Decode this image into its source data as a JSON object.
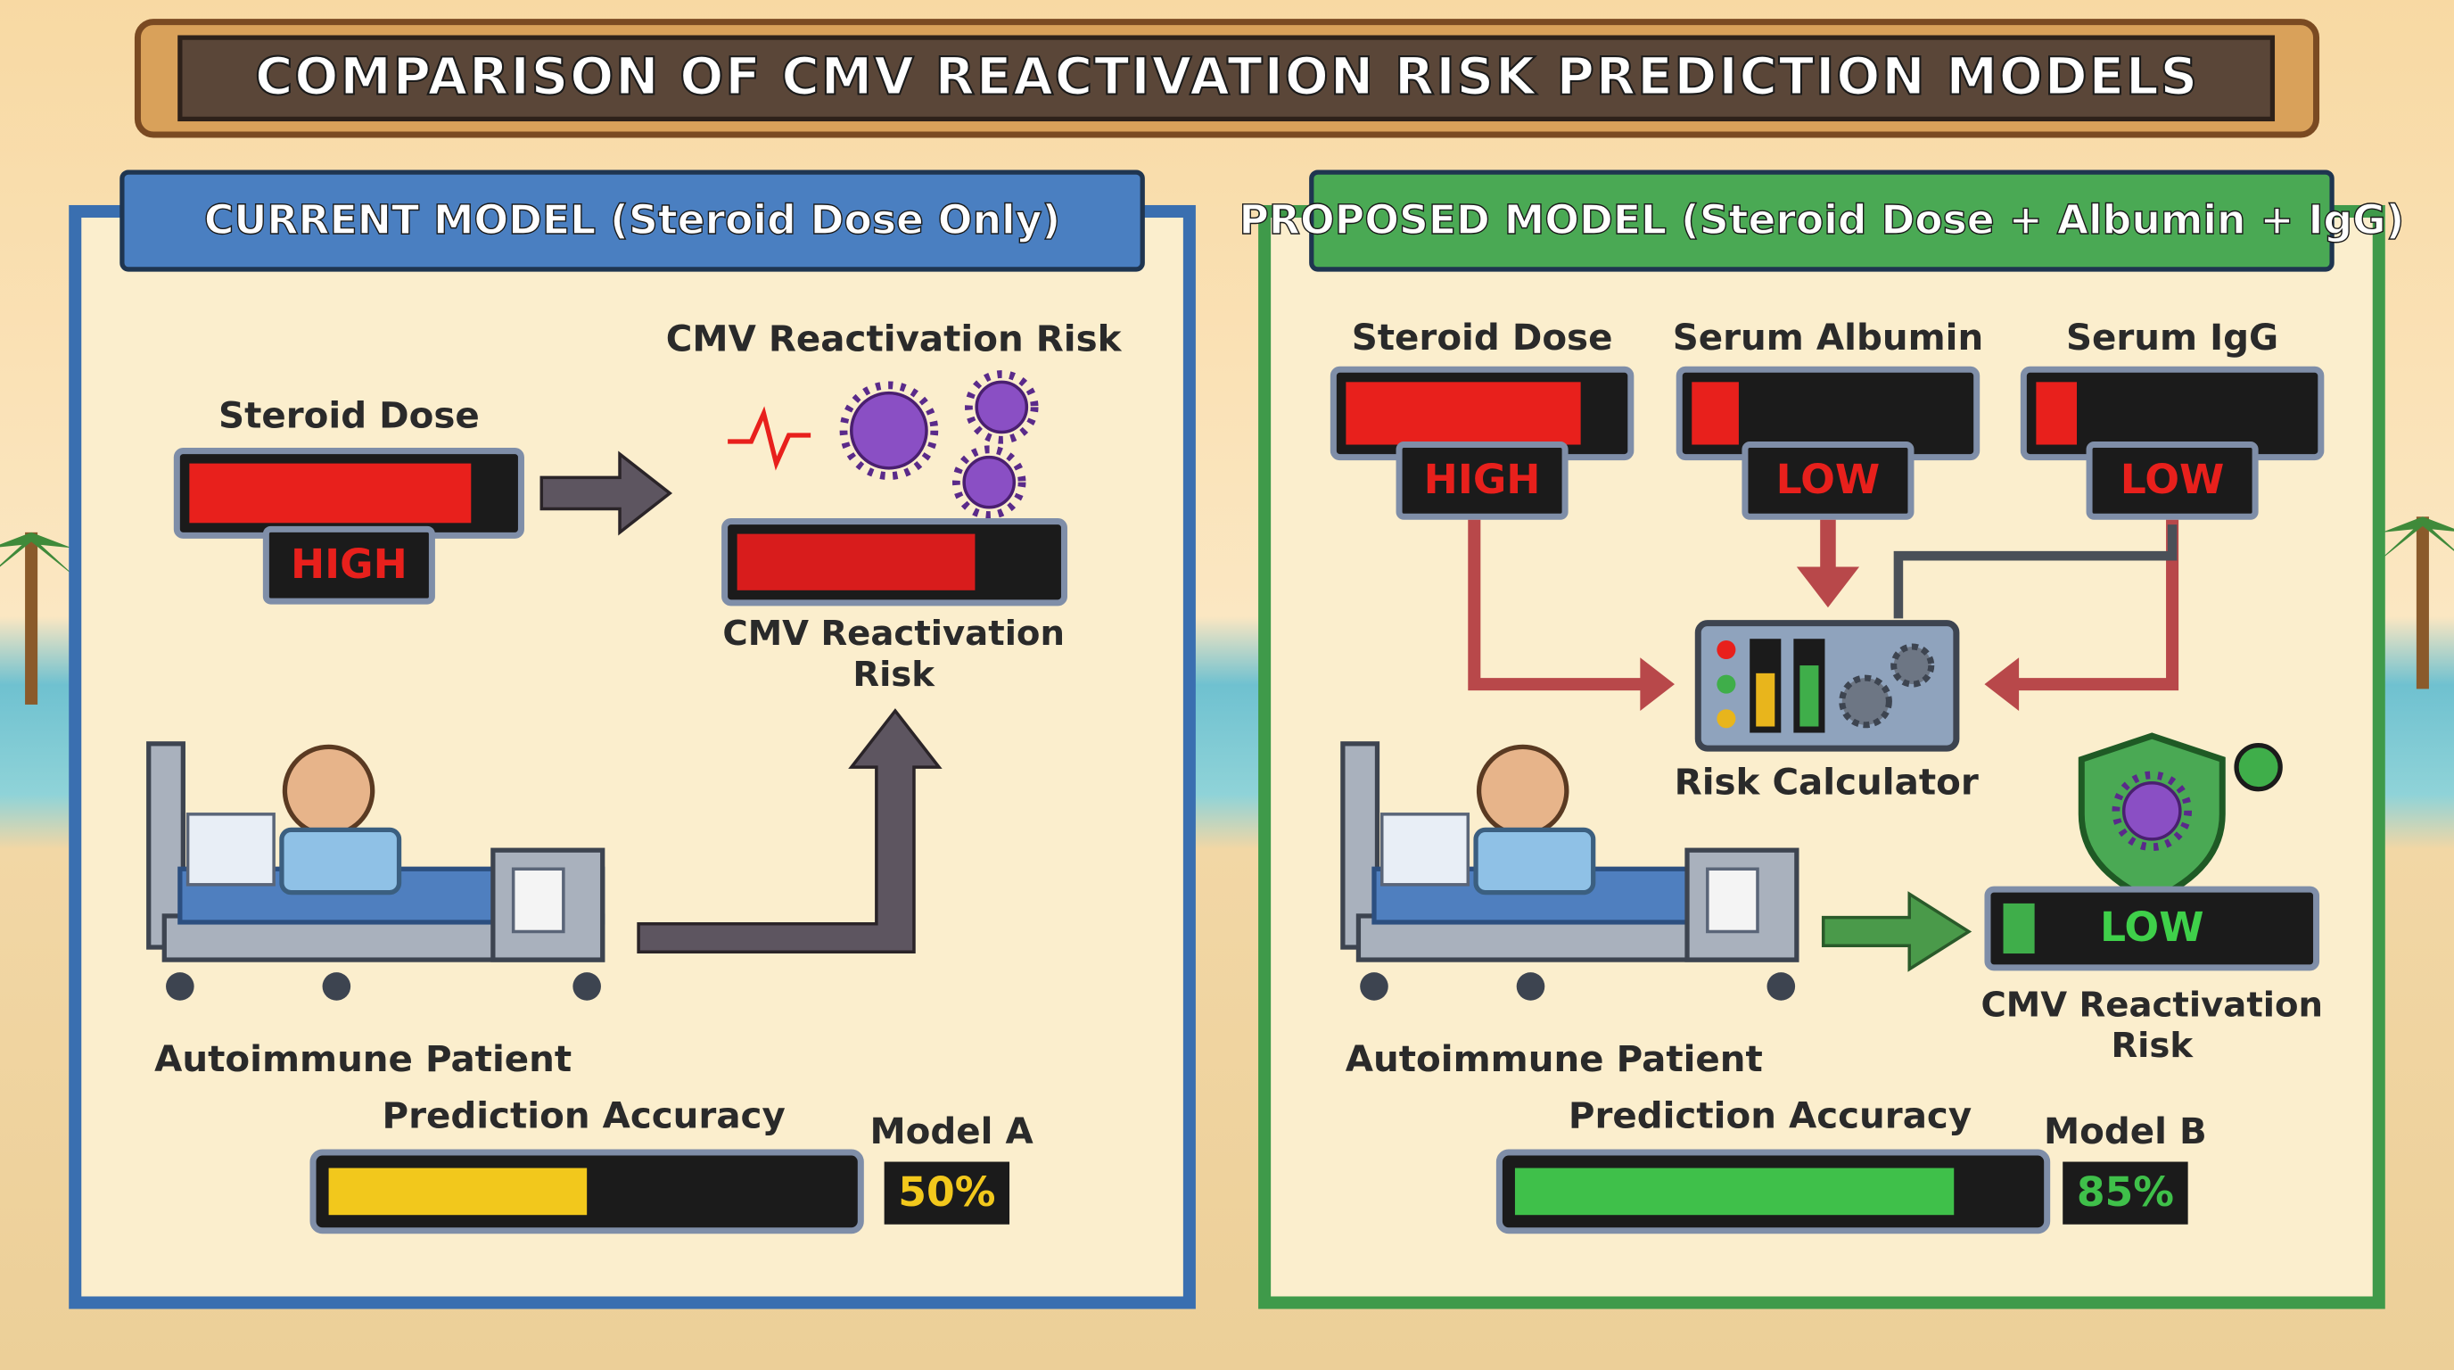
{
  "title": "COMPARISON OF CMV REACTIVATION RISK PREDICTION MODELS",
  "current_model": {
    "header": "CURRENT MODEL (Steroid Dose Only)",
    "risk_title": "CMV Reactivation Risk",
    "inputs": [
      {
        "label": "Steroid Dose",
        "level": "HIGH"
      }
    ],
    "risk_label": "CMV Reactivation Risk",
    "patient": "Autoimmune Patient",
    "accuracy_label": "Prediction Accuracy",
    "model": "Model A",
    "accuracy": {
      "value": 50,
      "label": "50%"
    },
    "xlim": [
      0,
      100
    ]
  },
  "proposed_model": {
    "header": "PROPOSED MODEL (Steroid Dose + Albumin + IgG)",
    "inputs": [
      {
        "label": "Steroid Dose",
        "level": "HIGH"
      },
      {
        "label": "Serum Albumin",
        "level": "LOW"
      },
      {
        "label": "Serum IgG",
        "level": "LOW"
      }
    ],
    "calculator": "Risk Calculator",
    "risk_level": "LOW",
    "risk_label": "CMV Reactivation Risk",
    "patient": "Autoimmune Patient",
    "accuracy_label": "Prediction Accuracy",
    "model": "Model B",
    "accuracy": {
      "value": 85,
      "label": "85%"
    },
    "xlim": [
      0,
      100
    ]
  }
}
